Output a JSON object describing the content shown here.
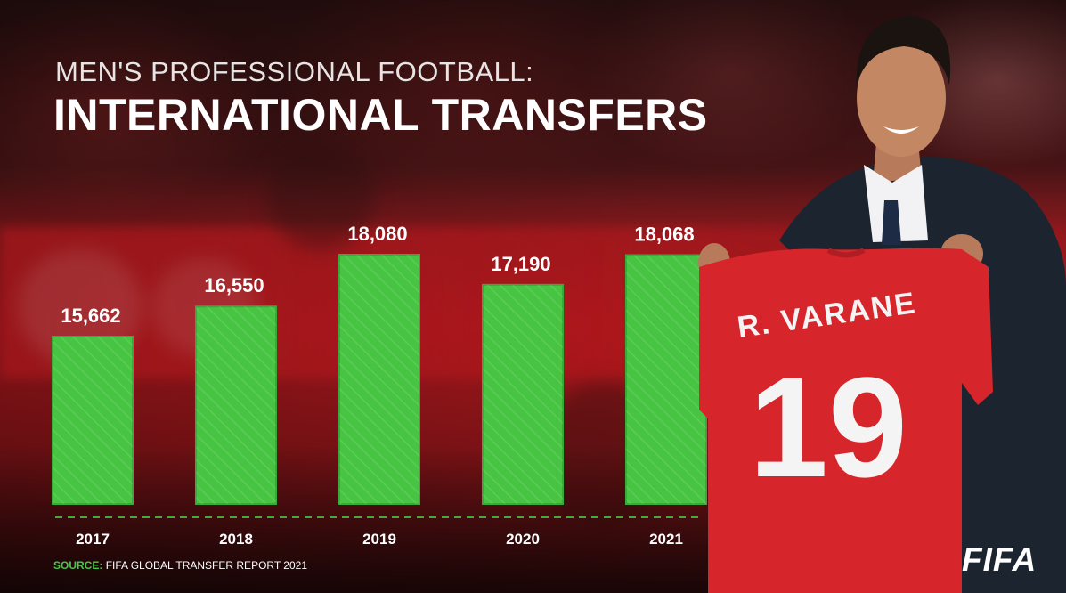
{
  "header": {
    "subtitle": "MEN'S PROFESSIONAL FOOTBALL:",
    "title": "INTERNATIONAL TRANSFERS"
  },
  "chart_data": {
    "type": "bar",
    "categories": [
      "2017",
      "2018",
      "2019",
      "2020",
      "2021"
    ],
    "values": [
      15662,
      16550,
      18080,
      17190,
      18068
    ],
    "value_labels": [
      "15,662",
      "16,550",
      "18,080",
      "17,190",
      "18,068"
    ],
    "title": "INTERNATIONAL TRANSFERS",
    "subtitle": "MEN'S PROFESSIONAL FOOTBALL:",
    "xlabel": "",
    "ylabel": "",
    "grid": false,
    "bar_color": "#47c442",
    "baseline_color": "#3fae3c"
  },
  "source": {
    "label": "SOURCE:",
    "text": "FIFA GLOBAL TRANSFER REPORT 2021"
  },
  "jersey": {
    "name": "R. VARANE",
    "number": "19"
  },
  "brand": {
    "logo_text": "FIFA"
  },
  "colors": {
    "accent": "#47c442",
    "jersey_red": "#d7262b",
    "text": "#ffffff"
  }
}
